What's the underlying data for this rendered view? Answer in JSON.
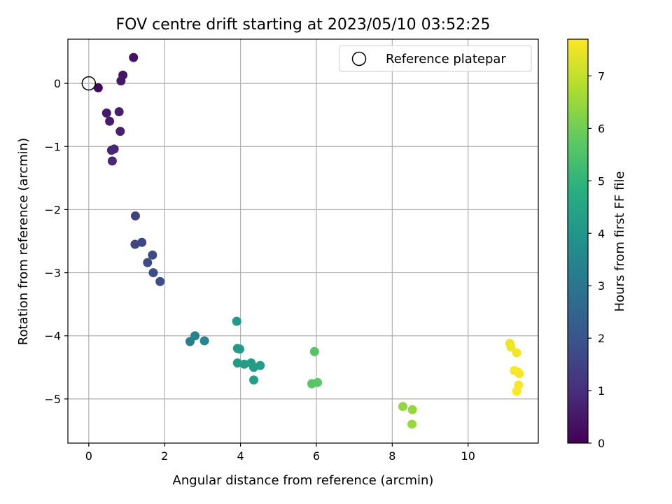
{
  "chart_data": {
    "type": "scatter",
    "title": "FOV centre drift starting at 2023/05/10 03:52:25",
    "xlabel": "Angular distance from reference (arcmin)",
    "ylabel": "Rotation from reference (arcmin)",
    "xlim": [
      -0.55,
      11.85
    ],
    "ylim": [
      -5.7,
      0.7
    ],
    "xticks": [
      0,
      2,
      4,
      6,
      8,
      10
    ],
    "yticks": [
      0,
      -1,
      -2,
      -3,
      -4,
      -5
    ],
    "xtick_labels": [
      "0",
      "2",
      "4",
      "6",
      "8",
      "10"
    ],
    "ytick_labels": [
      "0",
      "−1",
      "−2",
      "−3",
      "−4",
      "−5"
    ],
    "grid": true,
    "legend": {
      "position": "top-right",
      "entries": [
        "Reference platepar"
      ]
    },
    "reference_point": {
      "x": 0,
      "y": 0,
      "marker": "open-circle",
      "color": "#000000"
    },
    "colorbar": {
      "label": "Hours from first FF file",
      "min": 0,
      "max": 7.7,
      "ticks": [
        0,
        1,
        2,
        3,
        4,
        5,
        6,
        7
      ],
      "tick_labels": [
        "0",
        "1",
        "2",
        "3",
        "4",
        "5",
        "6",
        "7"
      ],
      "colormap": "viridis"
    },
    "x": [
      0.25,
      1.18,
      0.9,
      0.85,
      0.47,
      0.55,
      0.8,
      0.83,
      0.6,
      0.67,
      0.62,
      1.23,
      1.22,
      1.4,
      1.68,
      1.55,
      1.7,
      1.88,
      2.67,
      2.8,
      3.05,
      3.9,
      3.92,
      3.98,
      3.92,
      4.1,
      4.28,
      4.35,
      4.52,
      4.35,
      5.95,
      5.88,
      6.03,
      8.28,
      8.53,
      8.52,
      11.1,
      11.13,
      11.28,
      11.22,
      11.3,
      11.35,
      11.33,
      11.28
    ],
    "y": [
      -0.07,
      0.41,
      0.13,
      0.04,
      -0.47,
      -0.6,
      -0.45,
      -0.76,
      -1.06,
      -1.04,
      -1.23,
      -2.1,
      -2.55,
      -2.52,
      -2.72,
      -2.84,
      -3.0,
      -3.14,
      -4.09,
      -4.0,
      -4.08,
      -3.77,
      -4.2,
      -4.21,
      -4.43,
      -4.45,
      -4.43,
      -4.5,
      -4.47,
      -4.7,
      -4.25,
      -4.76,
      -4.74,
      -5.12,
      -5.17,
      -5.4,
      -4.12,
      -4.18,
      -4.27,
      -4.55,
      -4.57,
      -4.6,
      -4.78,
      -4.88
    ],
    "hours": [
      0.1,
      0.35,
      0.45,
      0.5,
      0.55,
      0.6,
      0.65,
      0.7,
      0.8,
      0.85,
      0.9,
      1.5,
      1.6,
      1.65,
      1.7,
      1.75,
      1.8,
      1.85,
      3.3,
      3.4,
      3.5,
      4.1,
      4.1,
      4.15,
      4.15,
      4.2,
      4.2,
      4.25,
      4.25,
      4.3,
      5.6,
      5.65,
      5.7,
      6.4,
      6.45,
      6.5,
      7.5,
      7.55,
      7.55,
      7.6,
      7.6,
      7.65,
      7.65,
      7.7
    ]
  }
}
